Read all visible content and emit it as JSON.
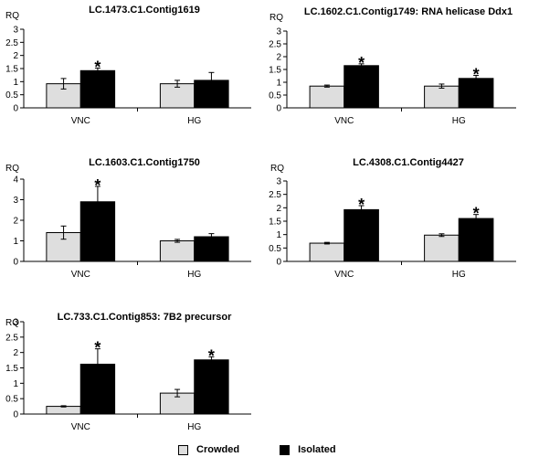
{
  "colors": {
    "crowded": "#dedede",
    "isolated": "#000000",
    "axis": "#000000"
  },
  "legend": [
    {
      "label": "Crowded",
      "color": "#dedede"
    },
    {
      "label": "Isolated",
      "color": "#000000"
    }
  ],
  "chart_data": [
    {
      "type": "bar",
      "title": "LC.1473.C1.Contig1619",
      "ylabel": "RQ",
      "categories": [
        "VNC",
        "HG"
      ],
      "ylim": [
        0,
        3
      ],
      "yticks": [
        "0",
        "0.5",
        "1",
        "1.5",
        "2",
        "2.5",
        "3"
      ],
      "series": [
        {
          "name": "Crowded",
          "values": [
            0.92,
            0.92
          ],
          "errors": [
            0.2,
            0.13
          ]
        },
        {
          "name": "Isolated",
          "values": [
            1.42,
            1.05
          ],
          "errors": [
            0.1,
            0.3
          ]
        }
      ],
      "significant": [
        true,
        false
      ]
    },
    {
      "type": "bar",
      "title": "LC.1602.C1.Contig1749: RNA helicase Ddx1",
      "ylabel": "RQ",
      "categories": [
        "VNC",
        "HG"
      ],
      "ylim": [
        0,
        3
      ],
      "yticks": [
        "0",
        "0.5",
        "1",
        "1.5",
        "2",
        "2.5",
        "3"
      ],
      "series": [
        {
          "name": "Crowded",
          "values": [
            0.85,
            0.85
          ],
          "errors": [
            0.04,
            0.08
          ]
        },
        {
          "name": "Isolated",
          "values": [
            1.65,
            1.15
          ],
          "errors": [
            0.07,
            0.12
          ]
        }
      ],
      "significant": [
        true,
        true
      ]
    },
    {
      "type": "bar",
      "title": "LC.1603.C1.Contig1750",
      "ylabel": "RQ",
      "categories": [
        "VNC",
        "HG"
      ],
      "ylim": [
        0,
        4
      ],
      "yticks": [
        "0",
        "1",
        "2",
        "3",
        "4"
      ],
      "series": [
        {
          "name": "Crowded",
          "values": [
            1.4,
            1.0
          ],
          "errors": [
            0.32,
            0.07
          ]
        },
        {
          "name": "Isolated",
          "values": [
            2.9,
            1.2
          ],
          "errors": [
            0.75,
            0.15
          ]
        }
      ],
      "significant": [
        true,
        false
      ]
    },
    {
      "type": "bar",
      "title": "LC.4308.C1.Contig4427",
      "ylabel": "RQ",
      "categories": [
        "VNC",
        "HG"
      ],
      "ylim": [
        0,
        3
      ],
      "yticks": [
        "0",
        "0.5",
        "1",
        "1.5",
        "2",
        "2.5",
        "3"
      ],
      "series": [
        {
          "name": "Crowded",
          "values": [
            0.68,
            0.98
          ],
          "errors": [
            0.03,
            0.05
          ]
        },
        {
          "name": "Isolated",
          "values": [
            1.93,
            1.6
          ],
          "errors": [
            0.15,
            0.15
          ]
        }
      ],
      "significant": [
        true,
        true
      ]
    },
    {
      "type": "bar",
      "title": "LC.733.C1.Contig853: 7B2 precursor",
      "ylabel": "RQ",
      "categories": [
        "VNC",
        "HG"
      ],
      "ylim": [
        0,
        3
      ],
      "yticks": [
        "0",
        "0.5",
        "1",
        "1.5",
        "2",
        "2.5",
        "3"
      ],
      "series": [
        {
          "name": "Crowded",
          "values": [
            0.25,
            0.68
          ],
          "errors": [
            0.02,
            0.12
          ]
        },
        {
          "name": "Isolated",
          "values": [
            1.62,
            1.76
          ],
          "errors": [
            0.5,
            0.1
          ]
        }
      ],
      "significant": [
        true,
        true
      ]
    }
  ]
}
